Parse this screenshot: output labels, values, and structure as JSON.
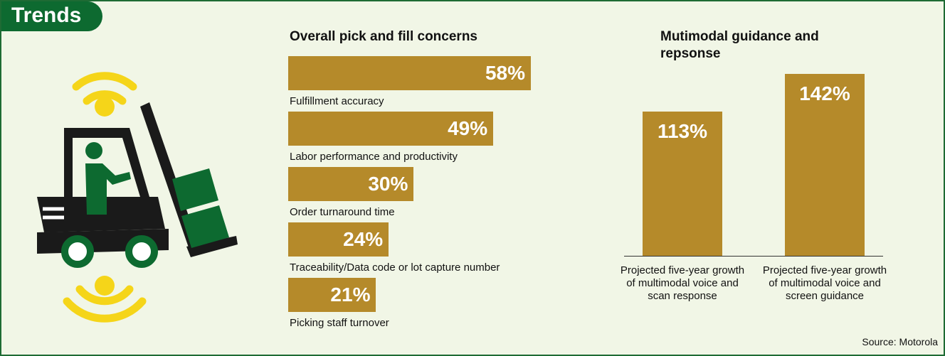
{
  "header": {
    "title": "Trends"
  },
  "chart_data": [
    {
      "type": "hbar",
      "title": "Overall pick and fill concerns",
      "categories": [
        "Fulfillment accuracy",
        "Labor performance and productivity",
        "Order turnaround time",
        "Traceability/Data code or lot capture number",
        "Picking staff turnover"
      ],
      "values": [
        58,
        49,
        30,
        24,
        21
      ],
      "value_labels": [
        "58%",
        "49%",
        "30%",
        "24%",
        "21%"
      ],
      "color": "#b58a2a"
    },
    {
      "type": "bar",
      "title": "Mutimodal guidance and repsonse",
      "categories": [
        "Projected five-year growth of multimodal voice and scan response",
        "Projected five-year growth of multimodal voice and screen guidance"
      ],
      "values": [
        113,
        142
      ],
      "value_labels": [
        "113%",
        "142%"
      ],
      "color": "#b58a2a"
    }
  ],
  "source": "Source: Motorola"
}
